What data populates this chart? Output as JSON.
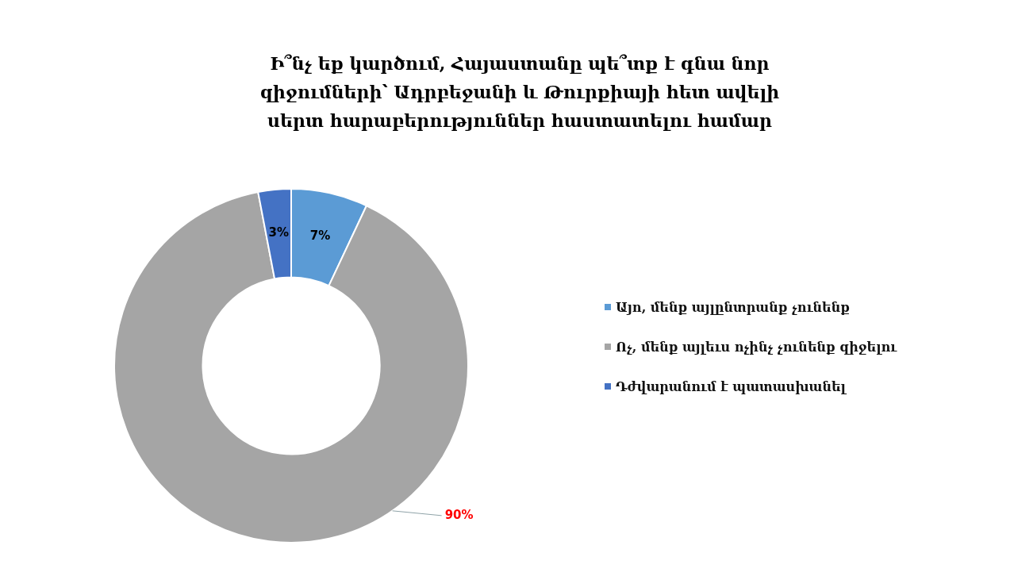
{
  "chart_data": {
    "type": "donut",
    "title": "Ի՞նչ եք կարծում, Հայաստանը պե՞տք է գնա նոր զիջումների՝ Ադրբեջանի և Թուրքիայի հետ ավելի սերտ հարաբերություններ հաստատելու համար",
    "categories": [
      "Այո, մենք այլընտրանք չունենք",
      "Ոչ, մենք այլեւս ոչինչ չունենք զիջելու",
      "Դժվարանում է պատասխանել"
    ],
    "values": [
      7,
      90,
      3
    ],
    "colors": [
      "#5b9bd5",
      "#a5a5a5",
      "#4472c4"
    ],
    "value_labels": [
      "7%",
      "90%",
      "3%"
    ],
    "legend": "right"
  }
}
